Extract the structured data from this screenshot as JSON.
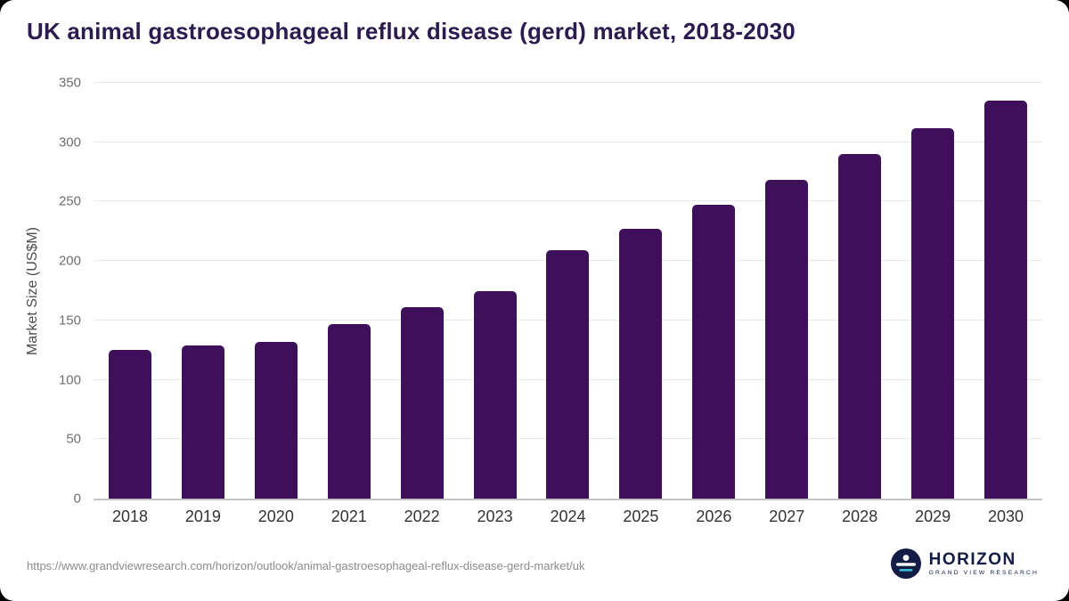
{
  "title": "UK animal gastroesophageal reflux disease (gerd) market, 2018-2030",
  "footer": {
    "source_url": "https://www.grandviewresearch.com/horizon/outlook/animal-gastroesophageal-reflux-disease-gerd-market/uk",
    "logo_title": "HORIZON",
    "logo_subtitle": "GRAND VIEW RESEARCH"
  },
  "colors": {
    "bar": "#3e1059",
    "title": "#2b1b4e",
    "grid": "#e8e8e8",
    "axis_line": "#c6c6c6",
    "tick_label": "#6e6e6e",
    "x_label": "#333333",
    "logo_navy": "#131c44",
    "logo_teal": "#35bcd4"
  },
  "chart_data": {
    "type": "bar",
    "title": "UK animal gastroesophageal reflux disease (gerd) market, 2018-2030",
    "categories": [
      "2018",
      "2019",
      "2020",
      "2021",
      "2022",
      "2023",
      "2024",
      "2025",
      "2026",
      "2027",
      "2028",
      "2029",
      "2030"
    ],
    "values": [
      125,
      129,
      132,
      147,
      161,
      175,
      209,
      227,
      247,
      268,
      290,
      312,
      335
    ],
    "xlabel": "",
    "ylabel": "Market Size (US$M)",
    "ylim": [
      0,
      350
    ],
    "yticks": [
      0,
      50,
      100,
      150,
      200,
      250,
      300,
      350
    ],
    "grid": true,
    "legend": false,
    "bar_color": "#3e1059"
  }
}
